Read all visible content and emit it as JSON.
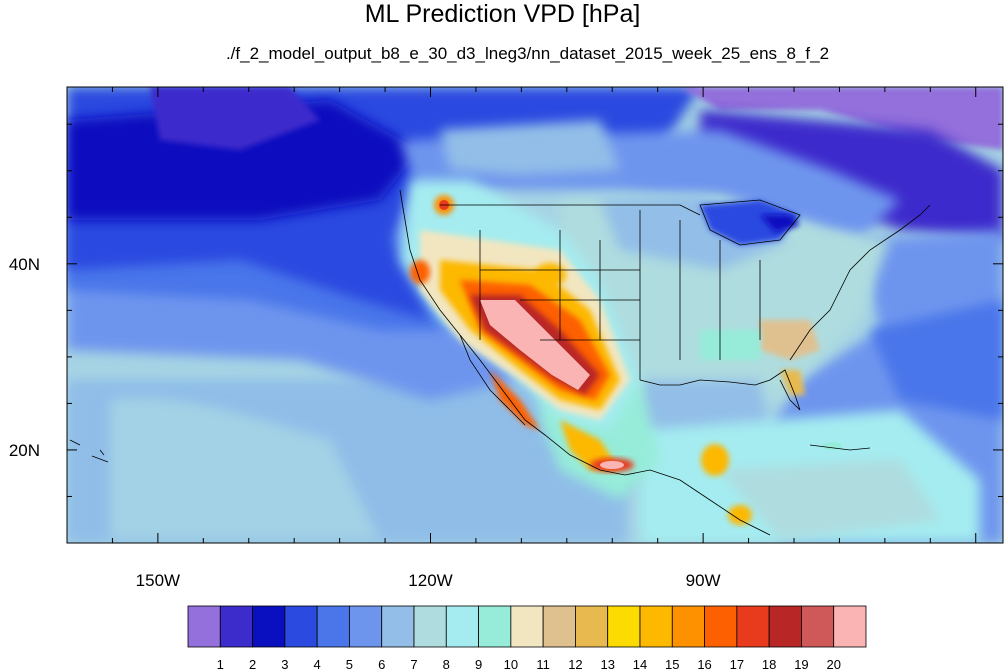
{
  "title": "ML Prediction VPD [hPa]",
  "subtitle": "./f_2_model_output_b8_e_30_d3_lneg3/nn_dataset_2015_week_25_ens_8_f_2",
  "map": {
    "projection": "cylindrical equidistant",
    "lon_range": [
      -160,
      -57
    ],
    "lat_range": [
      10,
      59
    ],
    "x_ticks": [
      {
        "lon": -150,
        "label": "150W"
      },
      {
        "lon": -120,
        "label": "120W"
      },
      {
        "lon": -90,
        "label": "90W"
      }
    ],
    "y_ticks": [
      {
        "lat": 40,
        "label": "40N"
      },
      {
        "lat": 20,
        "label": "20N"
      }
    ]
  },
  "colorbar": {
    "labels": [
      "1",
      "2",
      "3",
      "4",
      "5",
      "6",
      "7",
      "8",
      "9",
      "10",
      "11",
      "12",
      "13",
      "14",
      "15",
      "16",
      "17",
      "18",
      "19",
      "20"
    ],
    "colors": [
      "#9370db",
      "#3d2ccc",
      "#0a0fbf",
      "#2a4ae0",
      "#4a76ea",
      "#6e95ee",
      "#92bee8",
      "#afdcdf",
      "#a4ecf0",
      "#96ecd9",
      "#f2e6c0",
      "#dfc190",
      "#e8b94e",
      "#fcdb00",
      "#fdb800",
      "#fd9100",
      "#fd6000",
      "#e83a1c",
      "#b92626",
      "#cf5858",
      "#fbb4b4"
    ]
  }
}
